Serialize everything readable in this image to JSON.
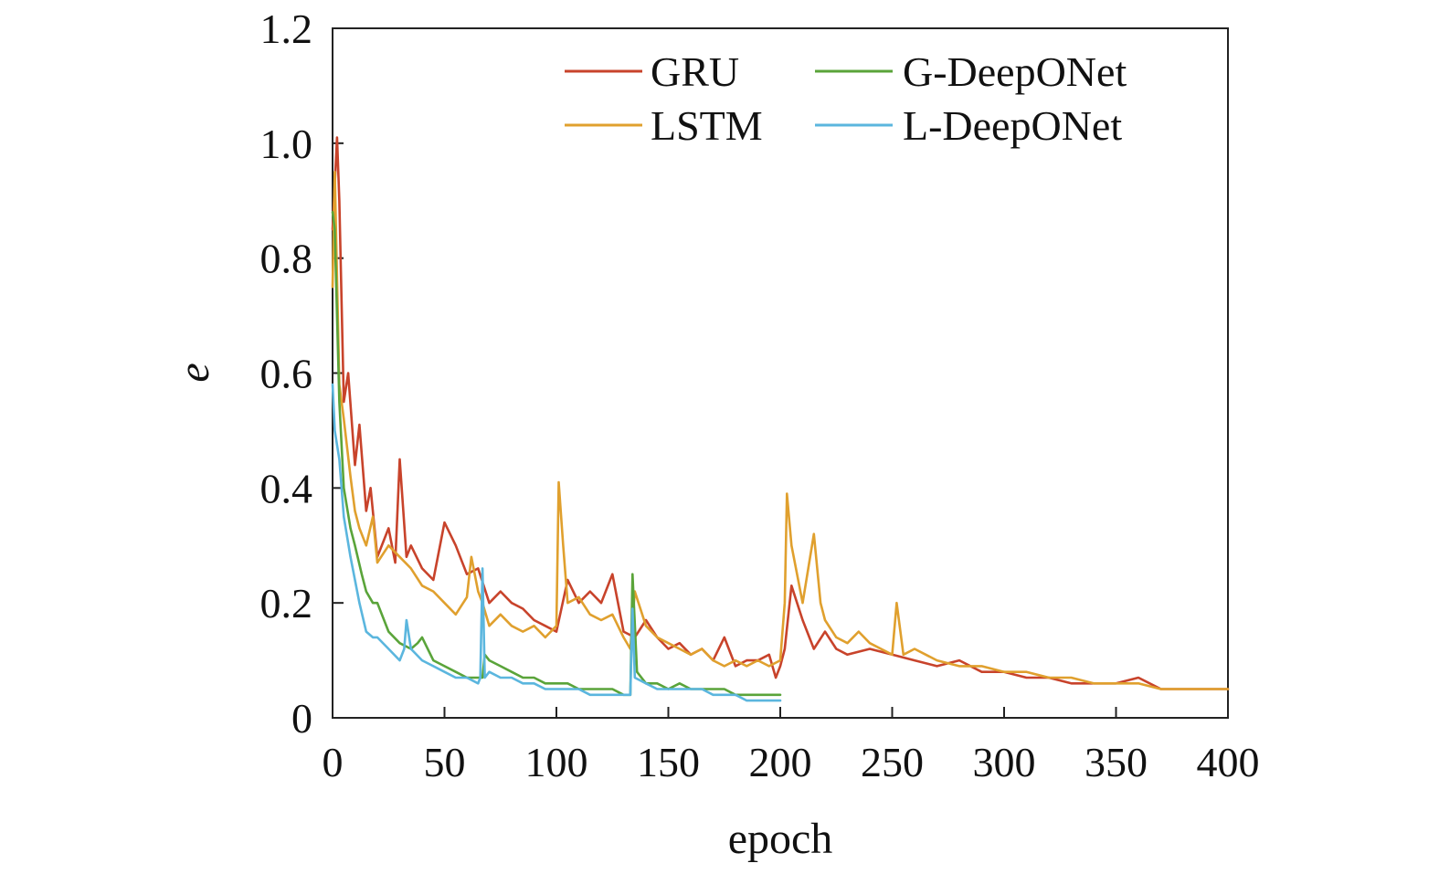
{
  "chart_data": {
    "type": "line",
    "title": "",
    "xlabel": "epoch",
    "ylabel": "e",
    "xlim": [
      0,
      400
    ],
    "ylim": [
      0,
      1.2
    ],
    "x_ticks": [
      0,
      50,
      100,
      150,
      200,
      250,
      300,
      350,
      400
    ],
    "y_ticks": [
      0,
      0.2,
      0.4,
      0.6,
      0.8,
      1.0,
      1.2
    ],
    "x_tick_labels": [
      "0",
      "50",
      "100",
      "150",
      "200",
      "250",
      "300",
      "350",
      "400"
    ],
    "y_tick_labels": [
      "0",
      "0.2",
      "0.4",
      "0.6",
      "0.8",
      "1.0",
      "1.2"
    ],
    "grid": false,
    "legend_position": "top-right",
    "series": [
      {
        "name": "GRU",
        "color": "#c8432b",
        "x": [
          0,
          2,
          3,
          5,
          7,
          10,
          12,
          15,
          17,
          20,
          25,
          28,
          30,
          33,
          35,
          40,
          45,
          50,
          55,
          60,
          65,
          70,
          75,
          80,
          85,
          90,
          95,
          100,
          105,
          110,
          115,
          120,
          125,
          130,
          135,
          140,
          145,
          150,
          155,
          160,
          165,
          170,
          175,
          180,
          185,
          190,
          195,
          198,
          200,
          202,
          205,
          210,
          215,
          220,
          225,
          230,
          240,
          250,
          260,
          270,
          280,
          290,
          300,
          310,
          320,
          330,
          340,
          350,
          360,
          370,
          380,
          390,
          400
        ],
        "y": [
          0.85,
          1.01,
          0.9,
          0.55,
          0.6,
          0.44,
          0.51,
          0.36,
          0.4,
          0.28,
          0.33,
          0.27,
          0.45,
          0.28,
          0.3,
          0.26,
          0.24,
          0.34,
          0.3,
          0.25,
          0.26,
          0.2,
          0.22,
          0.2,
          0.19,
          0.17,
          0.16,
          0.15,
          0.24,
          0.2,
          0.22,
          0.2,
          0.25,
          0.15,
          0.14,
          0.17,
          0.14,
          0.12,
          0.13,
          0.11,
          0.12,
          0.1,
          0.14,
          0.09,
          0.1,
          0.1,
          0.11,
          0.07,
          0.09,
          0.12,
          0.23,
          0.17,
          0.12,
          0.15,
          0.12,
          0.11,
          0.12,
          0.11,
          0.1,
          0.09,
          0.1,
          0.08,
          0.08,
          0.07,
          0.07,
          0.06,
          0.06,
          0.06,
          0.07,
          0.05,
          0.05,
          0.05,
          0.05
        ]
      },
      {
        "name": "LSTM",
        "color": "#e0a02e",
        "x": [
          0,
          1,
          3,
          5,
          8,
          10,
          12,
          15,
          18,
          20,
          25,
          30,
          35,
          40,
          45,
          50,
          55,
          60,
          62,
          65,
          67,
          70,
          75,
          80,
          85,
          90,
          95,
          100,
          101,
          103,
          105,
          110,
          115,
          120,
          125,
          130,
          133,
          135,
          140,
          145,
          150,
          155,
          160,
          165,
          170,
          175,
          180,
          185,
          190,
          195,
          200,
          202,
          203,
          205,
          210,
          215,
          218,
          220,
          225,
          230,
          235,
          240,
          245,
          250,
          252,
          255,
          260,
          270,
          280,
          290,
          300,
          310,
          320,
          330,
          340,
          350,
          360,
          370,
          380,
          390,
          400
        ],
        "y": [
          0.75,
          0.95,
          0.58,
          0.52,
          0.42,
          0.36,
          0.33,
          0.3,
          0.35,
          0.27,
          0.3,
          0.28,
          0.26,
          0.23,
          0.22,
          0.2,
          0.18,
          0.21,
          0.28,
          0.22,
          0.2,
          0.16,
          0.18,
          0.16,
          0.15,
          0.16,
          0.14,
          0.16,
          0.41,
          0.3,
          0.2,
          0.21,
          0.18,
          0.17,
          0.18,
          0.14,
          0.12,
          0.22,
          0.16,
          0.14,
          0.13,
          0.12,
          0.11,
          0.12,
          0.1,
          0.09,
          0.1,
          0.09,
          0.1,
          0.09,
          0.1,
          0.2,
          0.39,
          0.3,
          0.2,
          0.32,
          0.2,
          0.17,
          0.14,
          0.13,
          0.15,
          0.13,
          0.12,
          0.11,
          0.2,
          0.11,
          0.12,
          0.1,
          0.09,
          0.09,
          0.08,
          0.08,
          0.07,
          0.07,
          0.06,
          0.06,
          0.06,
          0.05,
          0.05,
          0.05,
          0.05
        ]
      },
      {
        "name": "G-DeepONet",
        "color": "#5aa43a",
        "x": [
          0,
          1,
          3,
          5,
          8,
          10,
          13,
          15,
          18,
          20,
          25,
          30,
          35,
          38,
          40,
          45,
          50,
          55,
          60,
          65,
          67,
          68,
          70,
          75,
          80,
          85,
          90,
          95,
          100,
          105,
          110,
          115,
          120,
          125,
          130,
          133,
          134,
          136,
          140,
          145,
          150,
          155,
          160,
          165,
          170,
          175,
          180,
          185,
          190,
          195,
          200
        ],
        "y": [
          0.88,
          0.85,
          0.55,
          0.4,
          0.33,
          0.3,
          0.25,
          0.22,
          0.2,
          0.2,
          0.15,
          0.13,
          0.12,
          0.13,
          0.14,
          0.1,
          0.09,
          0.08,
          0.07,
          0.07,
          0.07,
          0.11,
          0.1,
          0.09,
          0.08,
          0.07,
          0.07,
          0.06,
          0.06,
          0.06,
          0.05,
          0.05,
          0.05,
          0.05,
          0.04,
          0.04,
          0.25,
          0.08,
          0.06,
          0.06,
          0.05,
          0.06,
          0.05,
          0.05,
          0.05,
          0.05,
          0.04,
          0.04,
          0.04,
          0.04,
          0.04
        ]
      },
      {
        "name": "L-DeepONet",
        "color": "#5bb6de",
        "x": [
          0,
          1,
          3,
          5,
          8,
          10,
          12,
          15,
          18,
          20,
          25,
          30,
          32,
          33,
          35,
          40,
          45,
          50,
          55,
          60,
          65,
          66,
          67,
          68,
          70,
          75,
          80,
          85,
          90,
          95,
          100,
          105,
          110,
          115,
          120,
          125,
          130,
          133,
          134,
          135,
          140,
          145,
          150,
          155,
          160,
          165,
          170,
          175,
          180,
          185,
          190,
          195,
          200
        ],
        "y": [
          0.58,
          0.5,
          0.45,
          0.35,
          0.28,
          0.24,
          0.2,
          0.15,
          0.14,
          0.14,
          0.12,
          0.1,
          0.12,
          0.17,
          0.12,
          0.1,
          0.09,
          0.08,
          0.07,
          0.07,
          0.06,
          0.07,
          0.26,
          0.07,
          0.08,
          0.07,
          0.07,
          0.06,
          0.06,
          0.05,
          0.05,
          0.05,
          0.05,
          0.04,
          0.04,
          0.04,
          0.04,
          0.04,
          0.19,
          0.07,
          0.06,
          0.05,
          0.05,
          0.05,
          0.05,
          0.05,
          0.04,
          0.04,
          0.04,
          0.03,
          0.03,
          0.03,
          0.03
        ]
      }
    ]
  }
}
